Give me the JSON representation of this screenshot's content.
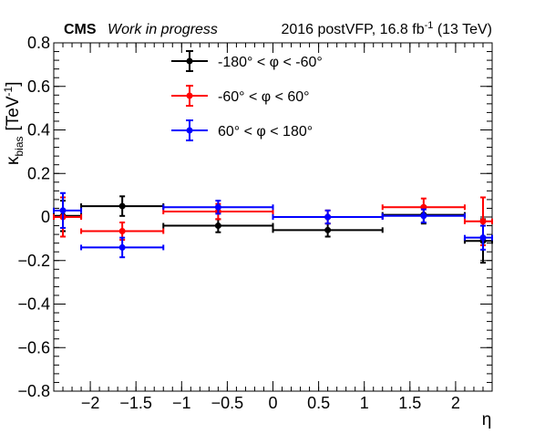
{
  "header": {
    "experiment": "CMS",
    "status": "Work in progress",
    "lumi_main": "2016 postVFP, 16.8 fb",
    "lumi_sup": "-1",
    "lumi_tail": " (13 TeV)"
  },
  "chart_data": {
    "type": "scatter",
    "xlabel": "η",
    "ylabel_symbol": "κ",
    "ylabel_sub": "bias",
    "ylabel_unit": "[TeV",
    "ylabel_unit_sup": "-1",
    "ylabel_unit_close": "]",
    "xlim": [
      -2.4,
      2.4
    ],
    "ylim": [
      -0.8,
      0.8
    ],
    "xticks": [
      -2,
      -1.5,
      -1,
      -0.5,
      0,
      0.5,
      1,
      1.5,
      2
    ],
    "xtick_labels": [
      "−2",
      "−1.5",
      "−1",
      "−0.5",
      "0",
      "0.5",
      "1",
      "1.5",
      "2"
    ],
    "yticks": [
      -0.8,
      -0.6,
      -0.4,
      -0.2,
      0,
      0.2,
      0.4,
      0.6,
      0.8
    ],
    "ytick_labels": [
      "−0.8",
      "−0.6",
      "−0.4",
      "−0.2",
      "0",
      "0.2",
      "0.4",
      "0.6",
      "0.8"
    ],
    "grid": false,
    "legend_position": "top-center",
    "series": [
      {
        "name": "-180° < φ < -60°",
        "color": "#000000",
        "points": [
          {
            "x": -2.3,
            "xlo": -2.4,
            "xhi": -2.1,
            "y": 0.005,
            "yerr": 0.07
          },
          {
            "x": -1.65,
            "xlo": -2.1,
            "xhi": -1.2,
            "y": 0.05,
            "yerr": 0.045
          },
          {
            "x": -0.6,
            "xlo": -1.2,
            "xhi": 0.0,
            "y": -0.04,
            "yerr": 0.03
          },
          {
            "x": 0.6,
            "xlo": 0.0,
            "xhi": 1.2,
            "y": -0.06,
            "yerr": 0.03
          },
          {
            "x": 1.65,
            "xlo": 1.2,
            "xhi": 2.1,
            "y": 0.01,
            "yerr": 0.04
          },
          {
            "x": 2.3,
            "xlo": 2.1,
            "xhi": 2.4,
            "y": -0.11,
            "yerr": 0.1
          }
        ]
      },
      {
        "name": "-60° < φ < 60°",
        "color": "#ff0000",
        "points": [
          {
            "x": -2.3,
            "xlo": -2.4,
            "xhi": -2.1,
            "y": 0.0,
            "yerr": 0.09
          },
          {
            "x": -1.65,
            "xlo": -2.1,
            "xhi": -1.2,
            "y": -0.065,
            "yerr": 0.04
          },
          {
            "x": -0.6,
            "xlo": -1.2,
            "xhi": 0.0,
            "y": 0.025,
            "yerr": 0.035
          },
          {
            "x": 0.6,
            "xlo": 0.0,
            "xhi": 1.2,
            "y": 0.0,
            "yerr": 0.03
          },
          {
            "x": 1.65,
            "xlo": 1.2,
            "xhi": 2.1,
            "y": 0.045,
            "yerr": 0.04
          },
          {
            "x": 2.3,
            "xlo": 2.1,
            "xhi": 2.4,
            "y": -0.02,
            "yerr": 0.11
          }
        ]
      },
      {
        "name": "60° < φ < 180°",
        "color": "#0000ff",
        "points": [
          {
            "x": -2.3,
            "xlo": -2.4,
            "xhi": -2.1,
            "y": 0.03,
            "yerr": 0.08
          },
          {
            "x": -1.65,
            "xlo": -2.1,
            "xhi": -1.2,
            "y": -0.14,
            "yerr": 0.045
          },
          {
            "x": -0.6,
            "xlo": -1.2,
            "xhi": 0.0,
            "y": 0.045,
            "yerr": 0.03
          },
          {
            "x": 0.6,
            "xlo": 0.0,
            "xhi": 1.2,
            "y": 0.0,
            "yerr": 0.03
          },
          {
            "x": 1.65,
            "xlo": 1.2,
            "xhi": 2.1,
            "y": 0.005,
            "yerr": 0.03
          },
          {
            "x": 2.3,
            "xlo": 2.1,
            "xhi": 2.4,
            "y": -0.095,
            "yerr": 0.055
          }
        ]
      }
    ]
  }
}
